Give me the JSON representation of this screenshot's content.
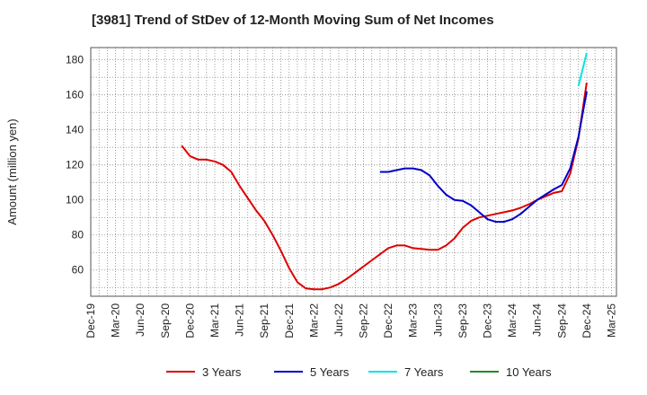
{
  "chart_data": {
    "type": "line",
    "title": "[3981]  Trend of StDev of 12-Month Moving Sum of Net Incomes",
    "xlabel": "",
    "ylabel": "Amount (million yen)",
    "ylim": [
      45,
      187
    ],
    "yticks": [
      60,
      80,
      100,
      120,
      140,
      160,
      180
    ],
    "xtick_labels": [
      "Dec-19",
      "Mar-20",
      "Jun-20",
      "Sep-20",
      "Dec-20",
      "Mar-21",
      "Jun-21",
      "Sep-21",
      "Dec-21",
      "Mar-22",
      "Jun-22",
      "Sep-22",
      "Dec-22",
      "Mar-23",
      "Jun-23",
      "Sep-23",
      "Dec-23",
      "Mar-24",
      "Jun-24",
      "Sep-24",
      "Dec-24",
      "Mar-25"
    ],
    "grid": true,
    "legend_position": "bottom",
    "series": [
      {
        "name": "3 Years",
        "color": "#dd0000",
        "x": [
          "2020-11",
          "2020-12",
          "2021-01",
          "2021-02",
          "2021-03",
          "2021-04",
          "2021-05",
          "2021-06",
          "2021-07",
          "2021-08",
          "2021-09",
          "2021-10",
          "2021-11",
          "2021-12",
          "2022-01",
          "2022-02",
          "2022-03",
          "2022-04",
          "2022-05",
          "2022-06",
          "2022-07",
          "2022-08",
          "2022-09",
          "2022-10",
          "2022-11",
          "2022-12",
          "2023-01",
          "2023-02",
          "2023-03",
          "2023-04",
          "2023-05",
          "2023-06",
          "2023-07",
          "2023-08",
          "2023-09",
          "2023-10",
          "2023-11",
          "2023-12",
          "2024-01",
          "2024-02",
          "2024-03",
          "2024-04",
          "2024-05",
          "2024-06",
          "2024-07",
          "2024-08",
          "2024-09",
          "2024-10",
          "2024-11",
          "2024-12"
        ],
        "values": [
          131,
          125,
          123,
          123,
          122,
          120,
          116,
          108,
          101,
          94,
          88,
          80,
          71,
          61,
          53,
          49.5,
          49,
          49,
          50,
          52,
          55,
          58.5,
          62,
          65.5,
          69,
          72.5,
          74,
          74,
          72.5,
          72,
          71.5,
          71.5,
          74,
          78,
          84,
          88,
          90,
          91,
          92,
          93,
          94,
          95.5,
          97.5,
          100,
          102,
          104,
          105,
          115,
          135,
          167
        ]
      },
      {
        "name": "5 Years",
        "color": "#0000cc",
        "x": [
          "2022-11",
          "2022-12",
          "2023-01",
          "2023-02",
          "2023-03",
          "2023-04",
          "2023-05",
          "2023-06",
          "2023-07",
          "2023-08",
          "2023-09",
          "2023-10",
          "2023-11",
          "2023-12",
          "2024-01",
          "2024-02",
          "2024-03",
          "2024-04",
          "2024-05",
          "2024-06",
          "2024-07",
          "2024-08",
          "2024-09",
          "2024-10",
          "2024-11",
          "2024-12"
        ],
        "values": [
          116,
          116,
          117,
          118,
          118,
          117,
          114,
          108,
          103,
          100,
          99.5,
          97,
          93,
          89,
          87.5,
          87.5,
          89,
          92,
          96,
          100,
          103,
          106,
          108.5,
          118,
          136,
          162
        ]
      },
      {
        "name": "7 Years",
        "color": "#00e5e5",
        "x": [
          "2024-11",
          "2024-12"
        ],
        "values": [
          165,
          184
        ]
      },
      {
        "name": "10 Years",
        "color": "#228b22",
        "x": [],
        "values": []
      }
    ]
  }
}
